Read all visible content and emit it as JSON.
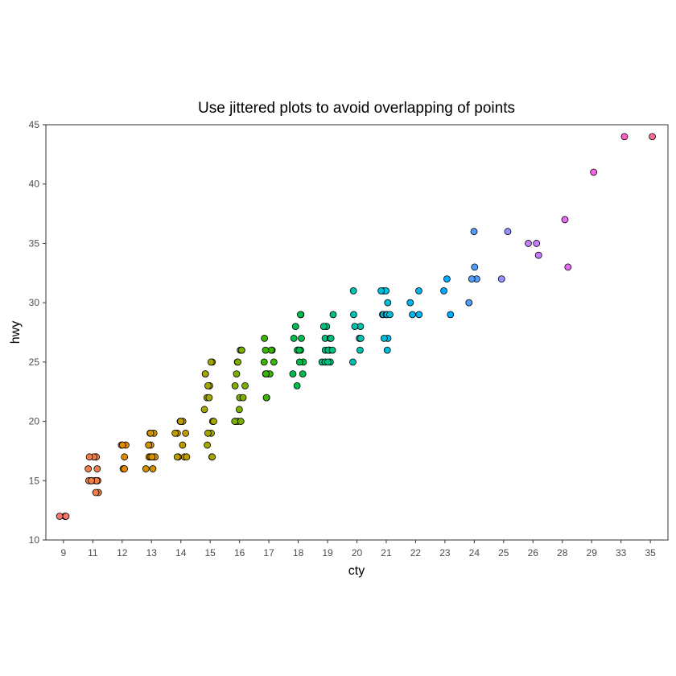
{
  "chart_data": {
    "type": "scatter",
    "title": "Use jittered plots to avoid overlapping of points",
    "xlabel": "cty",
    "ylabel": "hwy",
    "x_scale": "discrete",
    "categories": [
      "9",
      "11",
      "12",
      "13",
      "14",
      "15",
      "16",
      "17",
      "18",
      "19",
      "20",
      "21",
      "22",
      "23",
      "24",
      "25",
      "26",
      "28",
      "29",
      "33",
      "35"
    ],
    "ylim": [
      10,
      45
    ],
    "y_ticks": [
      10,
      15,
      20,
      25,
      30,
      35,
      40,
      45
    ],
    "grid": false,
    "legend": "none",
    "point_style": "filled circle with black outline, fill colored by cty category",
    "colors": [
      "#F8766D",
      "#EF7F49",
      "#E38900",
      "#D29200",
      "#BE9C00",
      "#A3A500",
      "#7CAE00",
      "#39B600",
      "#00BB4E",
      "#00BF7D",
      "#00C0AF",
      "#00BCD8",
      "#00B4EF",
      "#00A9FF",
      "#529EFF",
      "#9590FF",
      "#C77CFF",
      "#E76BF3",
      "#F863DF",
      "#FF61C3",
      "#FF6C91"
    ],
    "points": [
      {
        "x": "9",
        "y": 12
      },
      {
        "x": "9",
        "y": 12
      },
      {
        "x": "9",
        "y": 12
      },
      {
        "x": "9",
        "y": 12
      },
      {
        "x": "9",
        "y": 12
      },
      {
        "x": "11",
        "y": 17
      },
      {
        "x": "11",
        "y": 17
      },
      {
        "x": "11",
        "y": 17
      },
      {
        "x": "11",
        "y": 17
      },
      {
        "x": "11",
        "y": 16
      },
      {
        "x": "11",
        "y": 16
      },
      {
        "x": "11",
        "y": 15
      },
      {
        "x": "11",
        "y": 15
      },
      {
        "x": "11",
        "y": 15
      },
      {
        "x": "11",
        "y": 15
      },
      {
        "x": "11",
        "y": 15
      },
      {
        "x": "11",
        "y": 15
      },
      {
        "x": "11",
        "y": 15
      },
      {
        "x": "11",
        "y": 14
      },
      {
        "x": "11",
        "y": 14
      },
      {
        "x": "12",
        "y": 18
      },
      {
        "x": "12",
        "y": 18
      },
      {
        "x": "12",
        "y": 18
      },
      {
        "x": "12",
        "y": 17
      },
      {
        "x": "12",
        "y": 16
      },
      {
        "x": "12",
        "y": 16
      },
      {
        "x": "13",
        "y": 19
      },
      {
        "x": "13",
        "y": 19
      },
      {
        "x": "13",
        "y": 19
      },
      {
        "x": "13",
        "y": 18
      },
      {
        "x": "13",
        "y": 18
      },
      {
        "x": "13",
        "y": 17
      },
      {
        "x": "13",
        "y": 17
      },
      {
        "x": "13",
        "y": 17
      },
      {
        "x": "13",
        "y": 17
      },
      {
        "x": "13",
        "y": 17
      },
      {
        "x": "13",
        "y": 16
      },
      {
        "x": "13",
        "y": 16
      },
      {
        "x": "14",
        "y": 20
      },
      {
        "x": "14",
        "y": 20
      },
      {
        "x": "14",
        "y": 20
      },
      {
        "x": "14",
        "y": 19
      },
      {
        "x": "14",
        "y": 19
      },
      {
        "x": "14",
        "y": 19
      },
      {
        "x": "14",
        "y": 18
      },
      {
        "x": "14",
        "y": 17
      },
      {
        "x": "14",
        "y": 17
      },
      {
        "x": "14",
        "y": 17
      },
      {
        "x": "14",
        "y": 17
      },
      {
        "x": "15",
        "y": 25
      },
      {
        "x": "15",
        "y": 25
      },
      {
        "x": "15",
        "y": 24
      },
      {
        "x": "15",
        "y": 24
      },
      {
        "x": "15",
        "y": 23
      },
      {
        "x": "15",
        "y": 23
      },
      {
        "x": "15",
        "y": 22
      },
      {
        "x": "15",
        "y": 22
      },
      {
        "x": "15",
        "y": 21
      },
      {
        "x": "15",
        "y": 20
      },
      {
        "x": "15",
        "y": 20
      },
      {
        "x": "15",
        "y": 19
      },
      {
        "x": "15",
        "y": 19
      },
      {
        "x": "15",
        "y": 18
      },
      {
        "x": "15",
        "y": 17
      },
      {
        "x": "15",
        "y": 17
      },
      {
        "x": "16",
        "y": 26
      },
      {
        "x": "16",
        "y": 26
      },
      {
        "x": "16",
        "y": 26
      },
      {
        "x": "16",
        "y": 26
      },
      {
        "x": "16",
        "y": 25
      },
      {
        "x": "16",
        "y": 25
      },
      {
        "x": "16",
        "y": 24
      },
      {
        "x": "16",
        "y": 23
      },
      {
        "x": "16",
        "y": 23
      },
      {
        "x": "16",
        "y": 22
      },
      {
        "x": "16",
        "y": 22
      },
      {
        "x": "16",
        "y": 21
      },
      {
        "x": "16",
        "y": 20
      },
      {
        "x": "16",
        "y": 20
      },
      {
        "x": "16",
        "y": 20
      },
      {
        "x": "16",
        "y": 20
      },
      {
        "x": "17",
        "y": 27
      },
      {
        "x": "17",
        "y": 26
      },
      {
        "x": "17",
        "y": 26
      },
      {
        "x": "17",
        "y": 26
      },
      {
        "x": "17",
        "y": 25
      },
      {
        "x": "17",
        "y": 25
      },
      {
        "x": "17",
        "y": 24
      },
      {
        "x": "17",
        "y": 24
      },
      {
        "x": "17",
        "y": 24
      },
      {
        "x": "17",
        "y": 24
      },
      {
        "x": "17",
        "y": 22
      },
      {
        "x": "17",
        "y": 22
      },
      {
        "x": "18",
        "y": 29
      },
      {
        "x": "18",
        "y": 29
      },
      {
        "x": "18",
        "y": 28
      },
      {
        "x": "18",
        "y": 27
      },
      {
        "x": "18",
        "y": 27
      },
      {
        "x": "18",
        "y": 26
      },
      {
        "x": "18",
        "y": 26
      },
      {
        "x": "18",
        "y": 26
      },
      {
        "x": "18",
        "y": 26
      },
      {
        "x": "18",
        "y": 26
      },
      {
        "x": "18",
        "y": 25
      },
      {
        "x": "18",
        "y": 25
      },
      {
        "x": "18",
        "y": 24
      },
      {
        "x": "18",
        "y": 24
      },
      {
        "x": "18",
        "y": 23
      },
      {
        "x": "19",
        "y": 29
      },
      {
        "x": "19",
        "y": 28
      },
      {
        "x": "19",
        "y": 28
      },
      {
        "x": "19",
        "y": 27
      },
      {
        "x": "19",
        "y": 27
      },
      {
        "x": "19",
        "y": 27
      },
      {
        "x": "19",
        "y": 26
      },
      {
        "x": "19",
        "y": 26
      },
      {
        "x": "19",
        "y": 26
      },
      {
        "x": "19",
        "y": 26
      },
      {
        "x": "19",
        "y": 26
      },
      {
        "x": "19",
        "y": 25
      },
      {
        "x": "19",
        "y": 25
      },
      {
        "x": "19",
        "y": 25
      },
      {
        "x": "19",
        "y": 25
      },
      {
        "x": "20",
        "y": 31
      },
      {
        "x": "20",
        "y": 29
      },
      {
        "x": "20",
        "y": 28
      },
      {
        "x": "20",
        "y": 28
      },
      {
        "x": "20",
        "y": 27
      },
      {
        "x": "20",
        "y": 27
      },
      {
        "x": "20",
        "y": 27
      },
      {
        "x": "20",
        "y": 26
      },
      {
        "x": "20",
        "y": 25
      },
      {
        "x": "21",
        "y": 31
      },
      {
        "x": "21",
        "y": 31
      },
      {
        "x": "21",
        "y": 31
      },
      {
        "x": "21",
        "y": 30
      },
      {
        "x": "21",
        "y": 29
      },
      {
        "x": "21",
        "y": 29
      },
      {
        "x": "21",
        "y": 29
      },
      {
        "x": "21",
        "y": 29
      },
      {
        "x": "21",
        "y": 29
      },
      {
        "x": "21",
        "y": 27
      },
      {
        "x": "21",
        "y": 27
      },
      {
        "x": "21",
        "y": 26
      },
      {
        "x": "22",
        "y": 31
      },
      {
        "x": "22",
        "y": 30
      },
      {
        "x": "22",
        "y": 29
      },
      {
        "x": "22",
        "y": 29
      },
      {
        "x": "23",
        "y": 32
      },
      {
        "x": "23",
        "y": 31
      },
      {
        "x": "23",
        "y": 29
      },
      {
        "x": "24",
        "y": 36
      },
      {
        "x": "24",
        "y": 33
      },
      {
        "x": "24",
        "y": 32
      },
      {
        "x": "24",
        "y": 32
      },
      {
        "x": "24",
        "y": 30
      },
      {
        "x": "25",
        "y": 36
      },
      {
        "x": "25",
        "y": 32
      },
      {
        "x": "26",
        "y": 35
      },
      {
        "x": "26",
        "y": 35
      },
      {
        "x": "26",
        "y": 34
      },
      {
        "x": "28",
        "y": 37
      },
      {
        "x": "28",
        "y": 33
      },
      {
        "x": "29",
        "y": 41
      },
      {
        "x": "33",
        "y": 44
      },
      {
        "x": "35",
        "y": 44
      }
    ]
  }
}
